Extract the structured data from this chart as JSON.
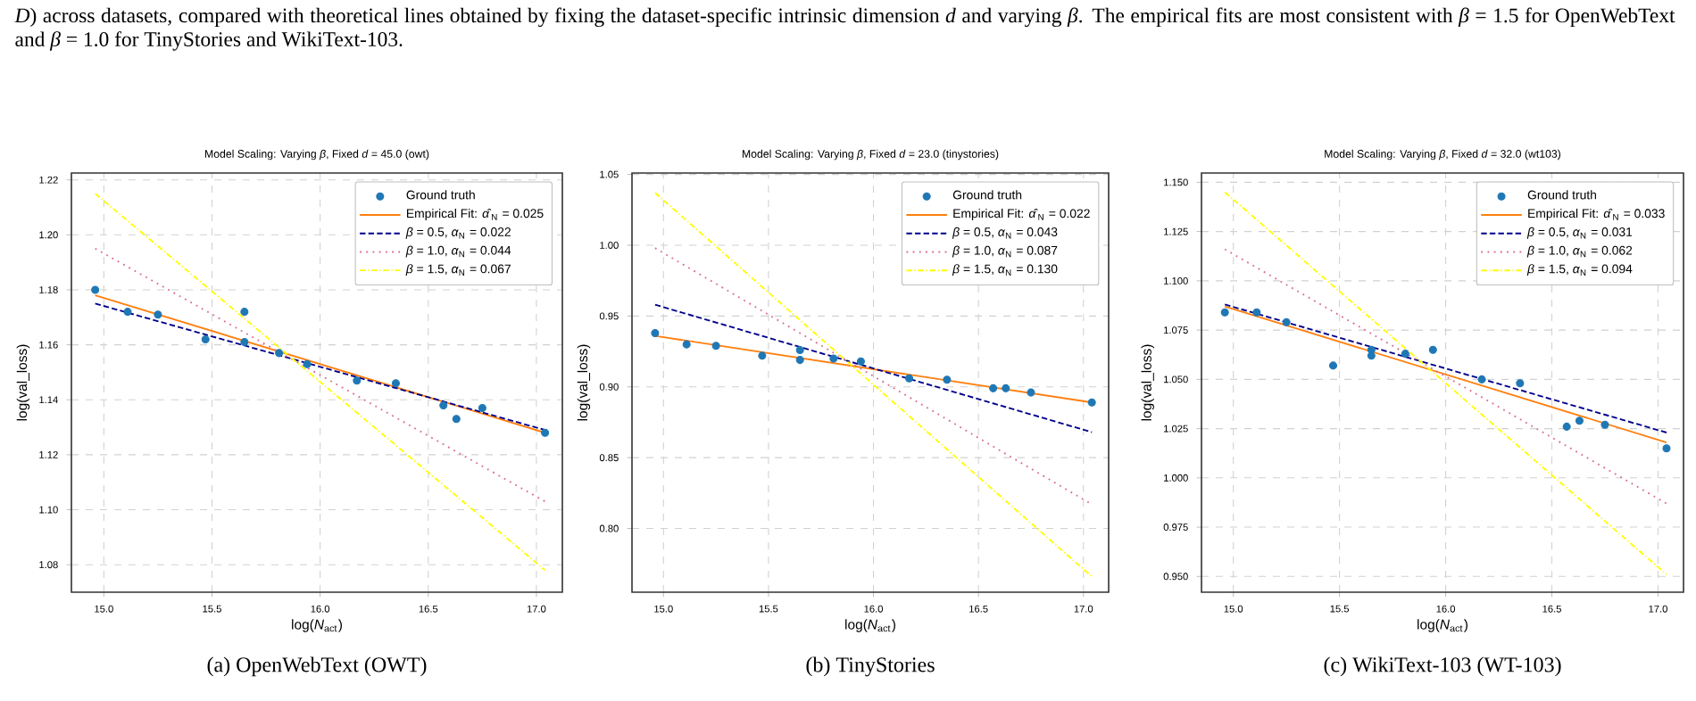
{
  "chart_data": [
    {
      "type": "other",
      "annotations": [
        "*D*) across datasets, compared with theoretical lines obtained by fixing the dataset-specific intrinsic dimension *d* and varying *β*. The empirical fits are most consistent with *β* = 1.5 for OpenWebText and *β* = 1.0 for TinyStories and WikiText-103."
      ]
    },
    {
      "type": "scatter",
      "title": "Model Scaling: Varying *β*, Fixed *d* = 45.0 (owt)",
      "xlabel": "log(*N*$_{act}$)",
      "ylabel": "log(val_loss)",
      "annotations": [
        "(a) OpenWebText (OWT)"
      ],
      "xlim": [
        14.85,
        17.12
      ],
      "ylim": [
        1.07,
        1.2225
      ],
      "xticks": [
        {
          "value": 15,
          "label": "15.0"
        },
        {
          "value": 15.5,
          "label": "15.5"
        },
        {
          "value": 16,
          "label": "16.0"
        },
        {
          "value": 16.5,
          "label": "16.5"
        },
        {
          "value": 17,
          "label": "17.0"
        }
      ],
      "yticks": [
        1.08,
        {
          "value": 1.1,
          "label": "1.10"
        },
        1.12,
        1.14,
        1.16,
        1.18,
        {
          "value": 1.2,
          "label": "1.20"
        },
        1.22
      ],
      "grid": true,
      "legend": "top right",
      "series": [
        {
          "name": "Ground truth",
          "type": "scatter",
          "marker": "circle",
          "color": "#1f77b4",
          "x": [
            14.96,
            15.11,
            15.25,
            15.47,
            15.65,
            15.65,
            15.81,
            15.94,
            16.17,
            16.35,
            16.57,
            16.63,
            16.75,
            17.04
          ],
          "values": [
            1.18,
            1.172,
            1.171,
            1.162,
            1.172,
            1.161,
            1.157,
            1.153,
            1.147,
            1.146,
            1.138,
            1.133,
            1.137,
            1.128
          ]
        },
        {
          "name": "Empirical Fit: *α̂*$_{N}$ = 0.025",
          "type": "line",
          "line_style": "solid",
          "color": "#ff7f0e",
          "x": [
            14.96,
            17.04
          ],
          "values": [
            1.178,
            1.128
          ]
        },
        {
          "name": "*β* = 0.5, *α*$_{N}$ = 0.022",
          "type": "line",
          "line_style": "dashed",
          "color": "#00008b",
          "x": [
            14.96,
            17.04
          ],
          "values": [
            1.175,
            1.129
          ]
        },
        {
          "name": "*β* = 1.0, *α*$_{N}$ = 0.044",
          "type": "line",
          "line_style": "dotted",
          "color": "#db7093",
          "x": [
            14.96,
            17.04
          ],
          "values": [
            1.195,
            1.103
          ]
        },
        {
          "name": "*β* = 1.5, *α*$_{N}$ = 0.067",
          "type": "line",
          "line_style": "dashdot",
          "color": "#ffff00",
          "x": [
            14.96,
            17.04
          ],
          "values": [
            1.215,
            1.078
          ]
        }
      ]
    },
    {
      "type": "scatter",
      "title": "Model Scaling: Varying *β*, Fixed *d* = 23.0 (tinystories)",
      "xlabel": "log(*N*$_{act}$)",
      "ylabel": "log(val_loss)",
      "annotations": [
        "(b) TinyStories"
      ],
      "xlim": [
        14.85,
        17.12
      ],
      "ylim": [
        0.755,
        1.051
      ],
      "xticks": [
        {
          "value": 15,
          "label": "15.0"
        },
        {
          "value": 15.5,
          "label": "15.5"
        },
        {
          "value": 16,
          "label": "16.0"
        },
        {
          "value": 16.5,
          "label": "16.5"
        },
        {
          "value": 17,
          "label": "17.0"
        }
      ],
      "yticks": [
        {
          "value": 0.8,
          "label": "0.80"
        },
        0.85,
        {
          "value": 0.9,
          "label": "0.90"
        },
        0.95,
        {
          "value": 1.0,
          "label": "1.00"
        },
        1.05
      ],
      "grid": true,
      "legend": "top right",
      "series": [
        {
          "name": "Ground truth",
          "type": "scatter",
          "marker": "circle",
          "color": "#1f77b4",
          "x": [
            14.96,
            15.11,
            15.25,
            15.47,
            15.65,
            15.65,
            15.81,
            15.94,
            16.17,
            16.35,
            16.57,
            16.63,
            16.75,
            17.04
          ],
          "values": [
            0.938,
            0.93,
            0.929,
            0.922,
            0.926,
            0.919,
            0.92,
            0.918,
            0.906,
            0.905,
            0.899,
            0.899,
            0.896,
            0.889
          ]
        },
        {
          "name": "Empirical Fit: *α̂*$_{N}$ = 0.022",
          "type": "line",
          "line_style": "solid",
          "color": "#ff7f0e",
          "x": [
            14.96,
            17.04
          ],
          "values": [
            0.936,
            0.889
          ]
        },
        {
          "name": "*β* = 0.5, *α*$_{N}$ = 0.043",
          "type": "line",
          "line_style": "dashed",
          "color": "#00008b",
          "x": [
            14.96,
            17.04
          ],
          "values": [
            0.958,
            0.868
          ]
        },
        {
          "name": "*β* = 1.0, *α*$_{N}$ = 0.087",
          "type": "line",
          "line_style": "dotted",
          "color": "#db7093",
          "x": [
            14.96,
            17.04
          ],
          "values": [
            0.998,
            0.817
          ]
        },
        {
          "name": "*β* = 1.5, *α*$_{N}$ = 0.130",
          "type": "line",
          "line_style": "dashdot",
          "color": "#ffff00",
          "x": [
            14.96,
            17.04
          ],
          "values": [
            1.037,
            0.766
          ]
        }
      ]
    },
    {
      "type": "scatter",
      "title": "Model Scaling: Varying *β*, Fixed *d* = 32.0 (wt103)",
      "xlabel": "log(*N*$_{act}$)",
      "ylabel": "log(val_loss)",
      "annotations": [
        "(c) WikiText-103 (WT-103)"
      ],
      "xlim": [
        14.85,
        17.12
      ],
      "ylim": [
        0.942,
        1.1547
      ],
      "xticks": [
        {
          "value": 15,
          "label": "15.0"
        },
        {
          "value": 15.5,
          "label": "15.5"
        },
        {
          "value": 16,
          "label": "16.0"
        },
        {
          "value": 16.5,
          "label": "16.5"
        },
        {
          "value": 17,
          "label": "17.0"
        }
      ],
      "yticks": [
        {
          "value": 0.95,
          "label": "0.950"
        },
        0.975,
        {
          "value": 1.0,
          "label": "1.000"
        },
        1.025,
        {
          "value": 1.05,
          "label": "1.050"
        },
        1.075,
        {
          "value": 1.1,
          "label": "1.100"
        },
        1.125,
        {
          "value": 1.15,
          "label": "1.150"
        }
      ],
      "grid": true,
      "legend": "top right",
      "series": [
        {
          "name": "Ground truth",
          "type": "scatter",
          "marker": "circle",
          "color": "#1f77b4",
          "x": [
            14.96,
            15.11,
            15.25,
            15.47,
            15.65,
            15.65,
            15.81,
            15.94,
            16.17,
            16.35,
            16.57,
            16.63,
            16.75,
            17.04
          ],
          "values": [
            1.084,
            1.084,
            1.079,
            1.057,
            1.065,
            1.062,
            1.063,
            1.065,
            1.05,
            1.048,
            1.026,
            1.029,
            1.027,
            1.015
          ]
        },
        {
          "name": "Empirical Fit: *α̂*$_{N}$ = 0.033",
          "type": "line",
          "line_style": "solid",
          "color": "#ff7f0e",
          "x": [
            14.96,
            17.04
          ],
          "values": [
            1.087,
            1.018
          ]
        },
        {
          "name": "*β* = 0.5, *α*$_{N}$ = 0.031",
          "type": "line",
          "line_style": "dashed",
          "color": "#00008b",
          "x": [
            14.96,
            17.04
          ],
          "values": [
            1.088,
            1.023
          ]
        },
        {
          "name": "*β* = 1.0, *α*$_{N}$ = 0.062",
          "type": "line",
          "line_style": "dotted",
          "color": "#db7093",
          "x": [
            14.96,
            17.04
          ],
          "values": [
            1.116,
            0.987
          ]
        },
        {
          "name": "*β* = 1.5, *α*$_{N}$ = 0.094",
          "type": "line",
          "line_style": "dashdot",
          "color": "#ffff00",
          "x": [
            14.96,
            17.04
          ],
          "values": [
            1.145,
            0.951
          ]
        }
      ]
    }
  ]
}
